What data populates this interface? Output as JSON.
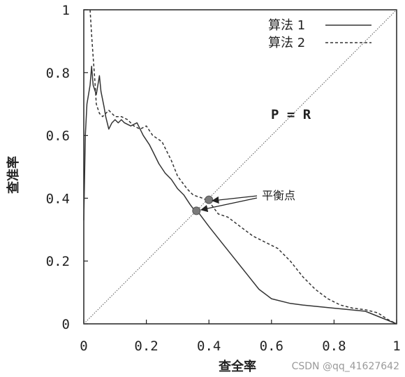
{
  "chart_data": {
    "type": "line",
    "xlabel": "查全率",
    "ylabel": "查准率",
    "xlim": [
      0,
      1
    ],
    "ylim": [
      0,
      1
    ],
    "x_ticks": [
      "0",
      "0.2",
      "0.4",
      "0.6",
      "0.8",
      "1"
    ],
    "y_ticks": [
      "0",
      "0.2",
      "0.4",
      "0.6",
      "0.8",
      "1"
    ],
    "legend_position": "top-right",
    "series": [
      {
        "name": "算法 1",
        "style": "solid",
        "color": "#333333",
        "x": [
          0.0,
          0.005,
          0.01,
          0.02,
          0.025,
          0.03,
          0.04,
          0.05,
          0.055,
          0.065,
          0.07,
          0.08,
          0.09,
          0.1,
          0.11,
          0.12,
          0.13,
          0.15,
          0.17,
          0.19,
          0.21,
          0.22,
          0.24,
          0.26,
          0.28,
          0.3,
          0.32,
          0.34,
          0.355,
          0.37,
          0.4,
          0.44,
          0.48,
          0.52,
          0.56,
          0.6,
          0.66,
          0.7,
          0.8,
          0.85,
          0.9,
          0.95,
          1.0
        ],
        "y": [
          0.33,
          0.6,
          0.7,
          0.76,
          0.82,
          0.76,
          0.73,
          0.79,
          0.74,
          0.69,
          0.66,
          0.62,
          0.64,
          0.65,
          0.64,
          0.65,
          0.64,
          0.63,
          0.64,
          0.6,
          0.57,
          0.55,
          0.51,
          0.48,
          0.46,
          0.43,
          0.41,
          0.38,
          0.36,
          0.35,
          0.31,
          0.26,
          0.21,
          0.16,
          0.11,
          0.08,
          0.065,
          0.06,
          0.05,
          0.045,
          0.04,
          0.02,
          0.0
        ]
      },
      {
        "name": "算法 2",
        "style": "dashed",
        "color": "#333333",
        "x": [
          0.02,
          0.025,
          0.03,
          0.035,
          0.04,
          0.05,
          0.06,
          0.07,
          0.08,
          0.1,
          0.12,
          0.14,
          0.16,
          0.18,
          0.2,
          0.22,
          0.25,
          0.28,
          0.3,
          0.33,
          0.35,
          0.38,
          0.4,
          0.43,
          0.46,
          0.5,
          0.54,
          0.58,
          0.62,
          0.66,
          0.7,
          0.74,
          0.78,
          0.82,
          0.86,
          0.9,
          0.94,
          0.97,
          1.0
        ],
        "y": [
          1.0,
          0.92,
          0.85,
          0.78,
          0.7,
          0.67,
          0.66,
          0.67,
          0.68,
          0.66,
          0.66,
          0.65,
          0.63,
          0.62,
          0.63,
          0.6,
          0.58,
          0.52,
          0.47,
          0.43,
          0.41,
          0.4,
          0.39,
          0.35,
          0.34,
          0.31,
          0.28,
          0.26,
          0.24,
          0.2,
          0.15,
          0.11,
          0.08,
          0.06,
          0.05,
          0.045,
          0.035,
          0.015,
          0.0
        ]
      },
      {
        "name": "P = R",
        "style": "dotted",
        "color": "#555555",
        "x": [
          0,
          1
        ],
        "y": [
          0,
          1
        ]
      }
    ],
    "points": [
      {
        "x": 0.36,
        "y": 0.36
      },
      {
        "x": 0.4,
        "y": 0.395
      }
    ],
    "annotations": {
      "line_label": "P = R",
      "break_even_label": "平衡点"
    }
  },
  "watermark": "CSDN @qq_41627642"
}
